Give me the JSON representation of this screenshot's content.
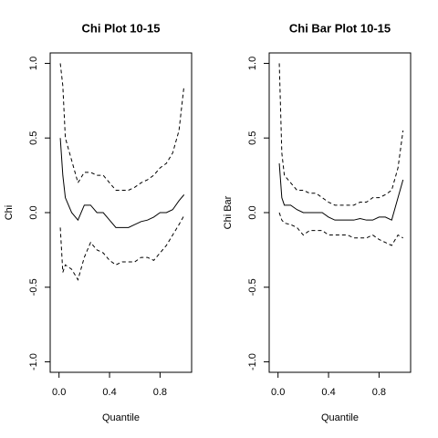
{
  "chart_data": [
    {
      "type": "line",
      "title": "Chi Plot 10-15",
      "xlabel": "Quantile",
      "ylabel": "Chi",
      "x": [
        0.01,
        0.03,
        0.05,
        0.1,
        0.15,
        0.2,
        0.25,
        0.3,
        0.35,
        0.4,
        0.45,
        0.5,
        0.55,
        0.6,
        0.65,
        0.7,
        0.75,
        0.8,
        0.85,
        0.9,
        0.95,
        0.99
      ],
      "series": [
        {
          "color": "#000000",
          "line_style": "solid",
          "values": [
            0.5,
            0.25,
            0.1,
            0.0,
            -0.05,
            0.05,
            0.05,
            0.0,
            0.0,
            -0.05,
            -0.1,
            -0.1,
            -0.1,
            -0.08,
            -0.06,
            -0.05,
            -0.03,
            0.0,
            0.0,
            0.02,
            0.08,
            0.12
          ]
        },
        {
          "color": "#000000",
          "line_style": "dashed",
          "values": [
            1.0,
            0.85,
            0.5,
            0.35,
            0.2,
            0.27,
            0.27,
            0.25,
            0.25,
            0.2,
            0.15,
            0.15,
            0.15,
            0.17,
            0.2,
            0.22,
            0.25,
            0.3,
            0.33,
            0.4,
            0.55,
            0.85
          ]
        },
        {
          "color": "#000000",
          "line_style": "dashed",
          "values": [
            -0.1,
            -0.4,
            -0.35,
            -0.38,
            -0.45,
            -0.3,
            -0.2,
            -0.25,
            -0.27,
            -0.32,
            -0.35,
            -0.33,
            -0.33,
            -0.33,
            -0.3,
            -0.3,
            -0.32,
            -0.27,
            -0.22,
            -0.15,
            -0.08,
            -0.02
          ]
        }
      ],
      "xlim": [
        -0.07,
        1.05
      ],
      "xticks": [
        {
          "value": 0,
          "label": "0.0"
        },
        0.4,
        0.8
      ],
      "ylim": [
        -1.07,
        1.07
      ],
      "yticks": [
        {
          "value": -1,
          "label": "-1.0"
        },
        -0.5,
        {
          "value": 0,
          "label": "0.0"
        },
        0.5,
        {
          "value": 1,
          "label": "1.0"
        }
      ]
    },
    {
      "type": "line",
      "title": "Chi Bar Plot 10-15",
      "xlabel": "Quantile",
      "ylabel": "Chi Bar",
      "x": [
        0.01,
        0.03,
        0.05,
        0.1,
        0.15,
        0.2,
        0.25,
        0.3,
        0.35,
        0.4,
        0.45,
        0.5,
        0.55,
        0.6,
        0.65,
        0.7,
        0.75,
        0.8,
        0.85,
        0.9,
        0.95,
        0.99
      ],
      "series": [
        {
          "color": "#000000",
          "line_style": "solid",
          "values": [
            0.33,
            0.1,
            0.05,
            0.05,
            0.02,
            0.0,
            0.0,
            0.0,
            0.0,
            -0.03,
            -0.05,
            -0.05,
            -0.05,
            -0.05,
            -0.04,
            -0.05,
            -0.05,
            -0.03,
            -0.03,
            -0.05,
            0.1,
            0.22
          ]
        },
        {
          "color": "#000000",
          "line_style": "dashed",
          "values": [
            1.0,
            0.4,
            0.25,
            0.2,
            0.15,
            0.15,
            0.13,
            0.13,
            0.1,
            0.07,
            0.05,
            0.05,
            0.05,
            0.05,
            0.07,
            0.07,
            0.1,
            0.1,
            0.12,
            0.15,
            0.3,
            0.55
          ]
        },
        {
          "color": "#000000",
          "line_style": "dashed",
          "values": [
            0.0,
            -0.05,
            -0.07,
            -0.08,
            -0.1,
            -0.15,
            -0.12,
            -0.12,
            -0.12,
            -0.15,
            -0.15,
            -0.15,
            -0.15,
            -0.17,
            -0.17,
            -0.17,
            -0.15,
            -0.18,
            -0.2,
            -0.22,
            -0.15,
            -0.17
          ]
        }
      ],
      "xlim": [
        -0.07,
        1.05
      ],
      "xticks": [
        {
          "value": 0,
          "label": "0.0"
        },
        0.4,
        0.8
      ],
      "ylim": [
        -1.07,
        1.07
      ],
      "yticks": [
        {
          "value": -1,
          "label": "-1.0"
        },
        -0.5,
        {
          "value": 0,
          "label": "0.0"
        },
        0.5,
        {
          "value": 1,
          "label": "1.0"
        }
      ]
    }
  ]
}
